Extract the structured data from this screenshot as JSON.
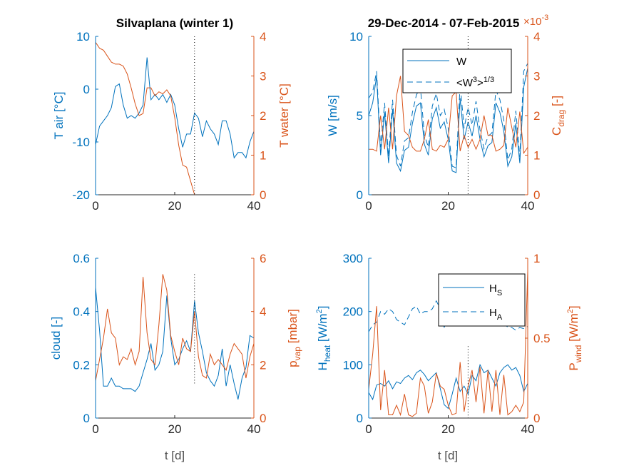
{
  "colors": {
    "blue": "#0072BD",
    "orange": "#D95319",
    "black": "#000000"
  },
  "chart_data": [
    {
      "type": "line",
      "title": "Silvaplana (winter 1)",
      "xlabel": "",
      "xlim": [
        0,
        40
      ],
      "xticks": [
        "0",
        "20",
        "40"
      ],
      "left_axis": {
        "label": "T air [°C]",
        "label_main": "T air [°C]",
        "label_sub": "",
        "ylim": [
          -20,
          10
        ],
        "ticks": [
          "-20",
          "-10",
          "0",
          "10"
        ]
      },
      "right_axis": {
        "label": "T water [°C]",
        "label_main": "T water [°C]",
        "label_sub": "",
        "ylim": [
          0,
          4
        ],
        "ticks": [
          "0",
          "1",
          "2",
          "3",
          "4"
        ]
      },
      "vline_x": 25,
      "series": [
        {
          "axis": "left",
          "style": "solid",
          "color": "#0072BD",
          "x": [
            0,
            1,
            2,
            3,
            4,
            5,
            6,
            7,
            8,
            9,
            10,
            11,
            12,
            13,
            14,
            15,
            16,
            17,
            18,
            19,
            20,
            21,
            22,
            23,
            24,
            25,
            26,
            27,
            28,
            29,
            30,
            31,
            32,
            33,
            34,
            35,
            36,
            37,
            38,
            39,
            40
          ],
          "y": [
            -10.5,
            -7,
            -6,
            -5,
            -3.5,
            0.5,
            1,
            -3,
            -5.5,
            -5,
            -5.5,
            -4.5,
            -3,
            6,
            -2,
            -1,
            -2,
            -1,
            -2.5,
            -1,
            -3,
            -7.5,
            -11,
            -8.5,
            -8.5,
            -4.5,
            -5.5,
            -9,
            -6,
            -7.5,
            -8.5,
            -10.5,
            -6,
            -6,
            -8.5,
            -13,
            -12,
            -12,
            -13,
            -10,
            -8
          ]
        },
        {
          "axis": "right",
          "style": "solid",
          "color": "#D95319",
          "x": [
            0,
            1,
            2,
            3,
            4,
            5,
            6,
            7,
            8,
            9,
            10,
            11,
            12,
            13,
            14,
            15,
            16,
            17,
            18,
            19,
            20,
            21,
            22,
            23,
            24,
            25
          ],
          "y": [
            3.85,
            3.7,
            3.65,
            3.5,
            3.35,
            3.3,
            3.3,
            3.25,
            3.05,
            2.7,
            2.3,
            2.0,
            2.05,
            2.7,
            2.7,
            2.5,
            2.6,
            2.55,
            2.65,
            2.5,
            1.95,
            1.25,
            0.75,
            0.7,
            0.35,
            0.0
          ]
        }
      ]
    },
    {
      "type": "line",
      "title": "29-Dec-2014 - 07-Feb-2015",
      "xlabel": "",
      "xlim": [
        0,
        40
      ],
      "xticks": [
        "0",
        "20",
        "40"
      ],
      "left_axis": {
        "label": "W [m/s]",
        "label_main": "W [m/s]",
        "label_sub": "",
        "ylim": [
          0,
          10
        ],
        "ticks": [
          "0",
          "5",
          "10"
        ]
      },
      "right_axis": {
        "label": "C_drag [-]",
        "label_main": "C",
        "label_sub": "drag",
        "label_tail": " [-]",
        "ylim": [
          0,
          4
        ],
        "ticks": [
          "0",
          "1",
          "2",
          "3",
          "4"
        ],
        "exponent": "10^-3"
      },
      "legend": {
        "position": "top-right",
        "entries": [
          {
            "name": "W",
            "style": "solid"
          },
          {
            "name": "<W³>^(1/3)",
            "style": "dashed",
            "text": "<W",
            "sup1": "3",
            "text2": ">",
            "sup2": "1/3"
          }
        ]
      },
      "vline_x": 25,
      "series": [
        {
          "axis": "left",
          "style": "solid",
          "color": "#0072BD",
          "name": "W",
          "x": [
            0,
            1,
            2,
            3,
            4,
            5,
            6,
            7,
            8,
            9,
            10,
            11,
            12,
            13,
            14,
            15,
            16,
            17,
            18,
            19,
            20,
            21,
            22,
            23,
            24,
            25,
            26,
            27,
            28,
            29,
            30,
            31,
            32,
            33,
            34,
            35,
            36,
            37,
            38,
            39,
            40
          ],
          "y": [
            5.0,
            5.8,
            7.5,
            2.5,
            5.2,
            2.0,
            5.4,
            2.0,
            1.5,
            2.8,
            3.0,
            4.5,
            5.6,
            5.8,
            3.2,
            2.5,
            4.8,
            5.5,
            4.2,
            4.6,
            3.5,
            1.5,
            1.4,
            6.1,
            3.5,
            4.6,
            3.7,
            5.0,
            3.5,
            2.4,
            3.1,
            3.3,
            5.8,
            5.2,
            4.0,
            1.8,
            2.4,
            4.5,
            2.0,
            6.8,
            8.0
          ]
        },
        {
          "axis": "left",
          "style": "dashed",
          "color": "#0072BD",
          "name": "<W³>^(1/3)",
          "x": [
            0,
            1,
            2,
            3,
            4,
            5,
            6,
            7,
            8,
            9,
            10,
            11,
            12,
            13,
            14,
            15,
            16,
            17,
            18,
            19,
            20,
            21,
            22,
            23,
            24,
            25,
            26,
            27,
            28,
            29,
            30,
            31,
            32,
            33,
            34,
            35,
            36,
            37,
            38,
            39,
            40
          ],
          "y": [
            6.1,
            6.5,
            7.8,
            3.0,
            5.8,
            2.4,
            6.0,
            2.5,
            1.8,
            3.4,
            3.6,
            5.2,
            6.3,
            6.8,
            3.8,
            3.0,
            5.6,
            6.4,
            5.0,
            5.4,
            4.2,
            1.8,
            1.7,
            7.0,
            4.2,
            5.5,
            4.4,
            5.9,
            4.1,
            2.9,
            3.7,
            3.9,
            6.6,
            6.0,
            4.7,
            2.2,
            2.9,
            5.3,
            2.4,
            7.8,
            8.3
          ]
        },
        {
          "axis": "right",
          "style": "solid",
          "color": "#D95319",
          "name": "C_drag",
          "x": [
            0,
            1,
            2,
            3,
            4,
            5,
            6,
            7,
            8,
            9,
            10,
            11,
            12,
            13,
            14,
            15,
            16,
            17,
            18,
            19,
            20,
            21,
            22,
            23,
            24,
            25,
            26,
            27,
            28,
            29,
            30,
            31,
            32,
            33,
            34,
            35,
            36,
            37,
            38,
            39,
            40
          ],
          "y": [
            1.15,
            1.15,
            1.1,
            2.0,
            1.15,
            2.2,
            1.15,
            2.5,
            3.0,
            1.6,
            1.5,
            1.2,
            1.1,
            1.1,
            1.4,
            1.9,
            1.15,
            1.1,
            1.25,
            1.2,
            1.4,
            2.5,
            2.6,
            1.1,
            1.5,
            1.2,
            1.4,
            1.15,
            1.4,
            2.0,
            1.5,
            1.5,
            1.1,
            1.15,
            1.25,
            2.2,
            1.7,
            1.2,
            2.1,
            1.05,
            1.2
          ]
        }
      ]
    },
    {
      "type": "line",
      "title": "",
      "xlabel": "t [d]",
      "xlim": [
        0,
        40
      ],
      "xticks": [
        "0",
        "20",
        "40"
      ],
      "left_axis": {
        "label": "cloud [-]",
        "label_main": "cloud [-]",
        "label_sub": "",
        "ylim": [
          0,
          0.6
        ],
        "ticks": [
          "0",
          "0.2",
          "0.4",
          "0.6"
        ]
      },
      "right_axis": {
        "label": "p_vap [mbar]",
        "label_main": "p",
        "label_sub": "vap",
        "label_tail": " [mbar]",
        "ylim": [
          0,
          6
        ],
        "ticks": [
          "0",
          "2",
          "4",
          "6"
        ]
      },
      "vline_x": 25,
      "vline_range": [
        0.13,
        0.54
      ],
      "series": [
        {
          "axis": "left",
          "style": "solid",
          "color": "#0072BD",
          "x": [
            0,
            1,
            2,
            3,
            4,
            5,
            6,
            7,
            8,
            9,
            10,
            11,
            12,
            13,
            14,
            15,
            16,
            17,
            18,
            19,
            20,
            21,
            22,
            23,
            24,
            25,
            26,
            27,
            28,
            29,
            30,
            31,
            32,
            33,
            34,
            35,
            36,
            37,
            38,
            39,
            40
          ],
          "y": [
            0.49,
            0.33,
            0.12,
            0.12,
            0.15,
            0.12,
            0.12,
            0.11,
            0.11,
            0.11,
            0.1,
            0.12,
            0.17,
            0.22,
            0.28,
            0.18,
            0.2,
            0.25,
            0.46,
            0.3,
            0.2,
            0.22,
            0.26,
            0.29,
            0.25,
            0.44,
            0.32,
            0.25,
            0.17,
            0.14,
            0.12,
            0.16,
            0.26,
            0.12,
            0.2,
            0.13,
            0.07,
            0.15,
            0.19,
            0.31,
            0.3
          ]
        },
        {
          "axis": "right",
          "style": "solid",
          "color": "#D95319",
          "x": [
            0,
            1,
            2,
            3,
            4,
            5,
            6,
            7,
            8,
            9,
            10,
            11,
            12,
            13,
            14,
            15,
            16,
            17,
            18,
            19,
            20,
            21,
            22,
            23,
            24,
            25,
            26,
            27,
            28,
            29,
            30,
            31,
            32,
            33,
            34,
            35,
            36,
            37,
            38,
            39,
            40
          ],
          "y": [
            1.4,
            2.2,
            3.0,
            4.1,
            3.2,
            3.0,
            2.0,
            2.3,
            2.2,
            2.6,
            2.0,
            2.5,
            5.3,
            3.2,
            2.2,
            2.0,
            3.5,
            5.4,
            4.8,
            3.1,
            2.5,
            2.0,
            3.0,
            2.6,
            2.5,
            4.0,
            2.3,
            1.6,
            1.5,
            2.4,
            2.0,
            2.2,
            2.0,
            1.8,
            2.4,
            2.8,
            2.6,
            2.4,
            1.5,
            2.3,
            2.8
          ]
        }
      ]
    },
    {
      "type": "line",
      "title": "",
      "xlabel": "t [d]",
      "xlim": [
        0,
        40
      ],
      "xticks": [
        "0",
        "20",
        "40"
      ],
      "left_axis": {
        "label": "H_heat [W/m²]",
        "label_main": "H",
        "label_sub": "heat",
        "label_tail": " [W/m",
        "label_sup": "2",
        "label_end": "]",
        "ylim": [
          0,
          300
        ],
        "ticks": [
          "0",
          "100",
          "200",
          "300"
        ]
      },
      "right_axis": {
        "label": "P_wind [W/m²]",
        "label_main": "P",
        "label_sub": "wind",
        "label_tail": " [W/m",
        "label_sup": "2",
        "label_end": "]",
        "ylim": [
          0,
          1
        ],
        "ticks": [
          "0",
          "0.5",
          "1"
        ]
      },
      "legend": {
        "position": "top-right",
        "entries": [
          {
            "name": "H_S",
            "style": "solid",
            "text": "H",
            "sub": "S"
          },
          {
            "name": "H_A",
            "style": "dashed",
            "text": "H",
            "sub": "A"
          }
        ]
      },
      "vline_x": 25,
      "vline_range": [
        0,
        135
      ],
      "series": [
        {
          "axis": "left",
          "style": "solid",
          "color": "#0072BD",
          "name": "H_S",
          "x": [
            0,
            1,
            2,
            3,
            4,
            5,
            6,
            7,
            8,
            9,
            10,
            11,
            12,
            13,
            14,
            15,
            16,
            17,
            18,
            19,
            20,
            21,
            22,
            23,
            24,
            25,
            26,
            27,
            28,
            29,
            30,
            31,
            32,
            33,
            34,
            35,
            36,
            37,
            38,
            39,
            40
          ],
          "y": [
            48,
            35,
            62,
            65,
            60,
            70,
            55,
            68,
            65,
            75,
            80,
            72,
            85,
            90,
            82,
            70,
            78,
            85,
            55,
            25,
            18,
            45,
            75,
            50,
            60,
            45,
            80,
            70,
            100,
            85,
            90,
            75,
            60,
            85,
            95,
            100,
            90,
            95,
            80,
            50,
            65
          ]
        },
        {
          "axis": "left",
          "style": "dashed",
          "color": "#0072BD",
          "name": "H_A",
          "x": [
            0,
            1,
            2,
            3,
            4,
            5,
            6,
            7,
            8,
            9,
            10,
            11,
            12,
            13,
            14,
            15,
            16,
            17,
            18,
            19,
            20,
            21,
            22,
            23,
            24,
            25,
            26,
            27,
            28,
            29,
            30,
            31,
            32,
            33,
            34,
            35,
            36,
            37,
            38,
            39,
            40
          ],
          "y": [
            162,
            175,
            180,
            200,
            195,
            205,
            200,
            185,
            180,
            175,
            190,
            205,
            210,
            195,
            200,
            200,
            205,
            220,
            205,
            170,
            200,
            230,
            210,
            220,
            205,
            190,
            200,
            205,
            195,
            195,
            185,
            180,
            190,
            185,
            180,
            170,
            170,
            165,
            170,
            168,
            172
          ]
        },
        {
          "axis": "right",
          "style": "solid",
          "color": "#D95319",
          "name": "P_wind",
          "x": [
            0,
            1,
            2,
            3,
            4,
            5,
            6,
            7,
            8,
            9,
            10,
            11,
            12,
            13,
            14,
            15,
            16,
            17,
            18,
            19,
            20,
            21,
            22,
            23,
            24,
            25,
            26,
            27,
            28,
            29,
            30,
            31,
            32,
            33,
            34,
            35,
            36,
            37,
            38,
            39,
            40
          ],
          "y": [
            0.18,
            0.4,
            0.7,
            0.05,
            0.3,
            0.02,
            0.02,
            0.08,
            0.02,
            0.15,
            0.02,
            0.01,
            0.03,
            0.25,
            0.2,
            0.03,
            0.1,
            0.28,
            0.2,
            0.18,
            0.08,
            0.02,
            0.03,
            0.35,
            0.04,
            0.2,
            0.3,
            0.1,
            0.32,
            0.03,
            0.3,
            0.04,
            0.3,
            0.02,
            0.27,
            0.02,
            0.04,
            0.08,
            0.04,
            0.1,
            0.92
          ]
        }
      ]
    }
  ]
}
